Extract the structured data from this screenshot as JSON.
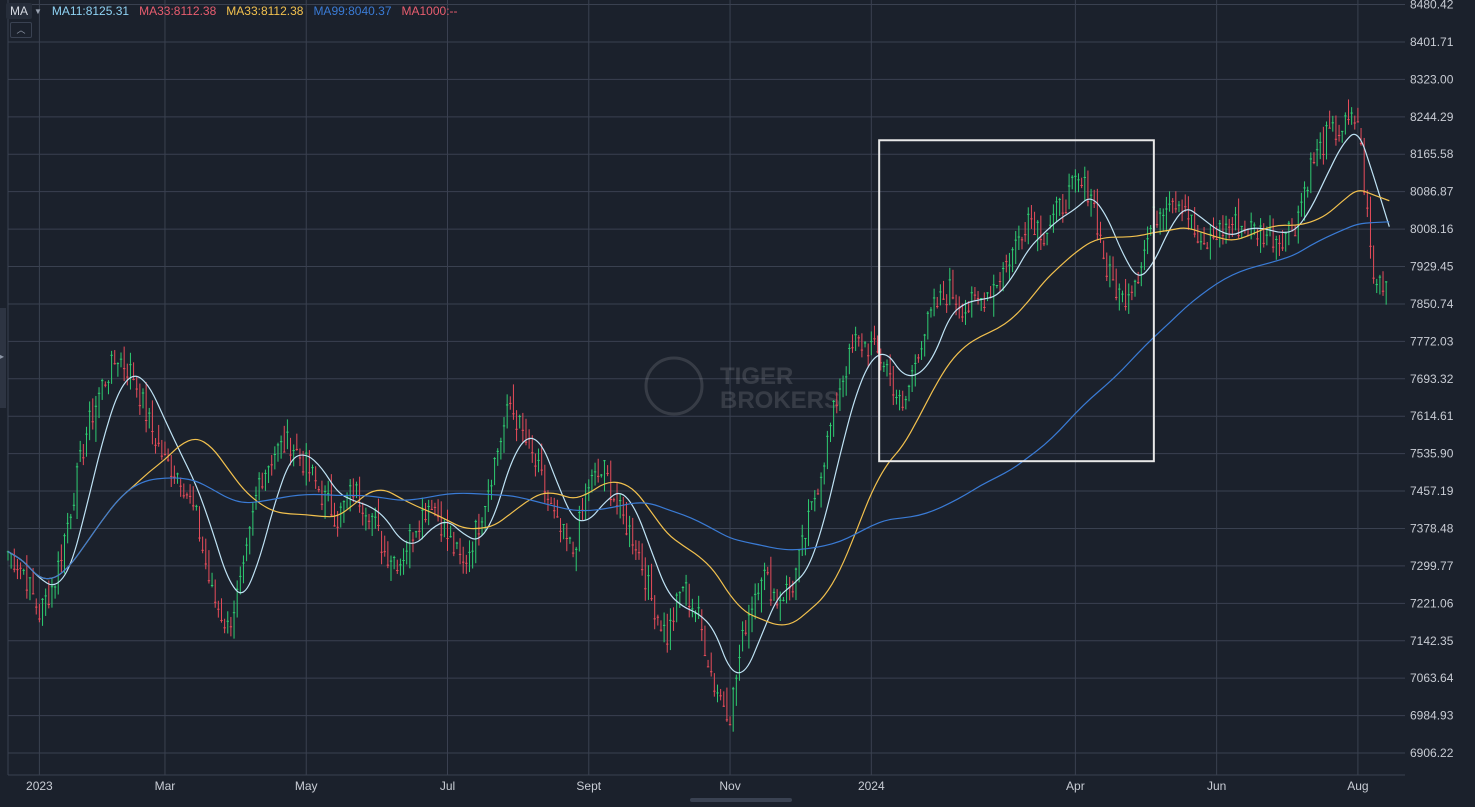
{
  "legend": {
    "indicator": "MA",
    "items": [
      {
        "label": "MA11:8125.31",
        "color": "#8fd3f4"
      },
      {
        "label": "MA33:8112.38",
        "color": "#e85d6f"
      },
      {
        "label": "MA33:8112.38",
        "color": "#f2c14e"
      },
      {
        "label": "MA99:8040.37",
        "color": "#3a7bd5"
      },
      {
        "label": "MA1000:--",
        "color": "#e85d6f"
      }
    ]
  },
  "watermark": {
    "line1": "TIGER",
    "line2": "BROKERS"
  },
  "colors": {
    "background": "#1b212c",
    "grid": "#3a4150",
    "up": "#2ecc71",
    "down": "#e74c5a",
    "axis_text": "#c8ccd4",
    "highlight_box": "#e8e8e8"
  },
  "chart_data": {
    "type": "candlestick",
    "y_ticks": [
      "8480.42",
      "8401.71",
      "8323.00",
      "8244.29",
      "8165.58",
      "8086.87",
      "8008.16",
      "7929.45",
      "7850.74",
      "7772.03",
      "7693.32",
      "7614.61",
      "7535.90",
      "7457.19",
      "7378.48",
      "7299.77",
      "7221.06",
      "7142.35",
      "7063.64",
      "6984.93",
      "6906.22"
    ],
    "ylim": [
      6860,
      8490
    ],
    "x_labels": [
      {
        "label": "2023",
        "week": 2
      },
      {
        "label": "Mar",
        "week": 10
      },
      {
        "label": "May",
        "week": 19
      },
      {
        "label": "Jul",
        "week": 28
      },
      {
        "label": "Sept",
        "week": 37
      },
      {
        "label": "Nov",
        "week": 46
      },
      {
        "label": "2024",
        "week": 55
      },
      {
        "label": "Apr",
        "week": 68
      },
      {
        "label": "Jun",
        "week": 77
      },
      {
        "label": "Aug",
        "week": 86
      }
    ],
    "x_range_weeks": [
      0,
      89
    ],
    "close_path": [
      [
        0,
        7330
      ],
      [
        1,
        7290
      ],
      [
        2,
        7200
      ],
      [
        3,
        7270
      ],
      [
        4,
        7420
      ],
      [
        5,
        7580
      ],
      [
        6,
        7680
      ],
      [
        7,
        7740
      ],
      [
        8,
        7700
      ],
      [
        9,
        7600
      ],
      [
        10,
        7520
      ],
      [
        11,
        7490
      ],
      [
        12,
        7400
      ],
      [
        13,
        7240
      ],
      [
        14,
        7170
      ],
      [
        15,
        7280
      ],
      [
        16,
        7480
      ],
      [
        17,
        7540
      ],
      [
        18,
        7560
      ],
      [
        19,
        7510
      ],
      [
        20,
        7450
      ],
      [
        21,
        7400
      ],
      [
        22,
        7460
      ],
      [
        23,
        7420
      ],
      [
        24,
        7330
      ],
      [
        25,
        7310
      ],
      [
        26,
        7390
      ],
      [
        27,
        7440
      ],
      [
        28,
        7360
      ],
      [
        29,
        7300
      ],
      [
        30,
        7390
      ],
      [
        31,
        7520
      ],
      [
        32,
        7640
      ],
      [
        33,
        7560
      ],
      [
        34,
        7480
      ],
      [
        35,
        7380
      ],
      [
        36,
        7330
      ],
      [
        37,
        7470
      ],
      [
        38,
        7500
      ],
      [
        39,
        7410
      ],
      [
        40,
        7350
      ],
      [
        41,
        7230
      ],
      [
        42,
        7150
      ],
      [
        43,
        7260
      ],
      [
        44,
        7190
      ],
      [
        45,
        7050
      ],
      [
        46,
        6990
      ],
      [
        47,
        7180
      ],
      [
        48,
        7290
      ],
      [
        49,
        7230
      ],
      [
        50,
        7260
      ],
      [
        51,
        7390
      ],
      [
        52,
        7530
      ],
      [
        53,
        7680
      ],
      [
        54,
        7770
      ],
      [
        55,
        7760
      ],
      [
        56,
        7720
      ],
      [
        57,
        7620
      ],
      [
        58,
        7760
      ],
      [
        59,
        7840
      ],
      [
        60,
        7880
      ],
      [
        61,
        7840
      ],
      [
        62,
        7860
      ],
      [
        63,
        7900
      ],
      [
        64,
        7960
      ],
      [
        65,
        8040
      ],
      [
        66,
        8000
      ],
      [
        67,
        8050
      ],
      [
        68,
        8100
      ],
      [
        69,
        8090
      ],
      [
        70,
        7920
      ],
      [
        71,
        7860
      ],
      [
        72,
        7920
      ],
      [
        73,
        8030
      ],
      [
        74,
        8080
      ],
      [
        75,
        8060
      ],
      [
        76,
        7960
      ],
      [
        77,
        8000
      ],
      [
        78,
        8020
      ],
      [
        79,
        8010
      ],
      [
        80,
        8000
      ],
      [
        81,
        7990
      ],
      [
        82,
        8020
      ],
      [
        83,
        8140
      ],
      [
        84,
        8200
      ],
      [
        85,
        8220
      ],
      [
        86,
        8240
      ],
      [
        87,
        7900
      ],
      [
        88,
        7900
      ]
    ],
    "volatility": 55,
    "highlight_box": {
      "from_week": 55.5,
      "to_week": 73,
      "top": 8195,
      "bottom": 7520
    },
    "series": [
      {
        "name": "MA11",
        "color": "#bfe3f5",
        "window": 3
      },
      {
        "name": "MA33",
        "color": "#f2c14e",
        "window": 9
      },
      {
        "name": "MA99",
        "color": "#3a7bd5",
        "window": 26
      }
    ]
  }
}
